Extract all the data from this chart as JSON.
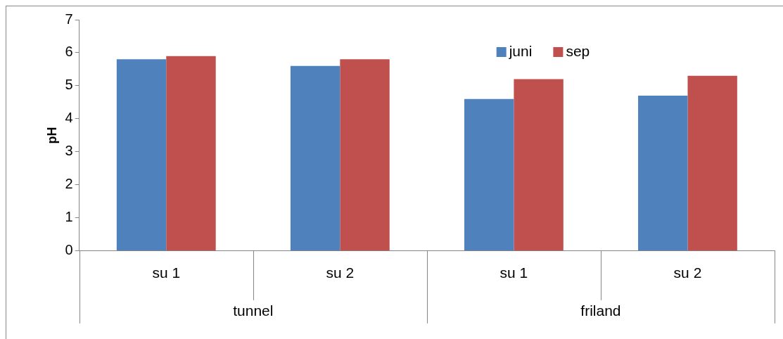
{
  "chart_data": {
    "type": "bar",
    "ylabel": "pH",
    "categories": [
      "su 1",
      "su 2",
      "su 1",
      "su 2"
    ],
    "series": [
      {
        "name": "juni",
        "color": "#4f81bd",
        "values": [
          5.8,
          5.6,
          4.6,
          4.7
        ]
      },
      {
        "name": "sep",
        "color": "#c0504d",
        "values": [
          5.9,
          5.8,
          5.2,
          5.3
        ]
      }
    ],
    "annotations": [
      "tunnel",
      "friland"
    ],
    "ylim": [
      0,
      7
    ],
    "yticks": [
      0,
      1,
      2,
      3,
      4,
      5,
      6,
      7
    ],
    "grid": false,
    "legend": "top right"
  }
}
